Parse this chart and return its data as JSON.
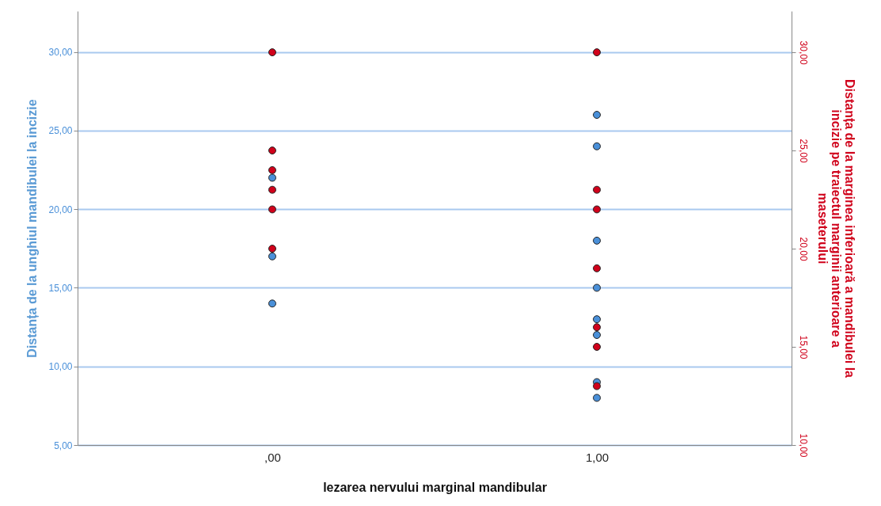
{
  "chart_data": {
    "type": "scatter",
    "categories": [
      ",00",
      "1,00"
    ],
    "xlabel": "lezarea nervului marginal mandibular",
    "ylabel": "Distanța de la unghiul mandibulei la incizie",
    "y2label": "Distanța de la marginea inferioară a mandibulei la incizie pe traiectul marginii anterioare a maseterului",
    "series": [
      {
        "color": "#4a90d9",
        "x": [
          ",00",
          ",00",
          ",00",
          "1,00",
          "1,00",
          "1,00",
          "1,00",
          "1,00",
          "1,00",
          "1,00",
          "1,00"
        ],
        "values": [
          22,
          17,
          14,
          26,
          24,
          18,
          15,
          13,
          12,
          9,
          8
        ]
      },
      {
        "color": "#d0021b",
        "axis": "y2",
        "x": [
          ",00",
          ",00",
          ",00",
          ",00",
          ",00",
          ",00",
          "1,00",
          "1,00",
          "1,00",
          "1,00",
          "1,00",
          "1,00",
          "1,00"
        ],
        "values": [
          30,
          25,
          24,
          23,
          22,
          20,
          30,
          23,
          22,
          19,
          16,
          15,
          13
        ]
      }
    ],
    "ylim": [
      5,
      32.6
    ],
    "yticks": [
      {
        "value": 5,
        "label": "5,00"
      },
      {
        "value": 10,
        "label": "10,00"
      },
      {
        "value": 15,
        "label": "15,00"
      },
      {
        "value": 20,
        "label": "20,00"
      },
      {
        "value": 25,
        "label": "25,00"
      },
      {
        "value": 30,
        "label": "30,00"
      }
    ],
    "y2lim": [
      10,
      32.1
    ],
    "y2ticks": [
      {
        "value": 10,
        "label": "10,00"
      },
      {
        "value": 15,
        "label": "15,00"
      },
      {
        "value": 20,
        "label": "20,00"
      },
      {
        "value": 25,
        "label": "25,00"
      },
      {
        "value": 30,
        "label": "30,00"
      }
    ],
    "grid": "y",
    "marker": "circle"
  }
}
